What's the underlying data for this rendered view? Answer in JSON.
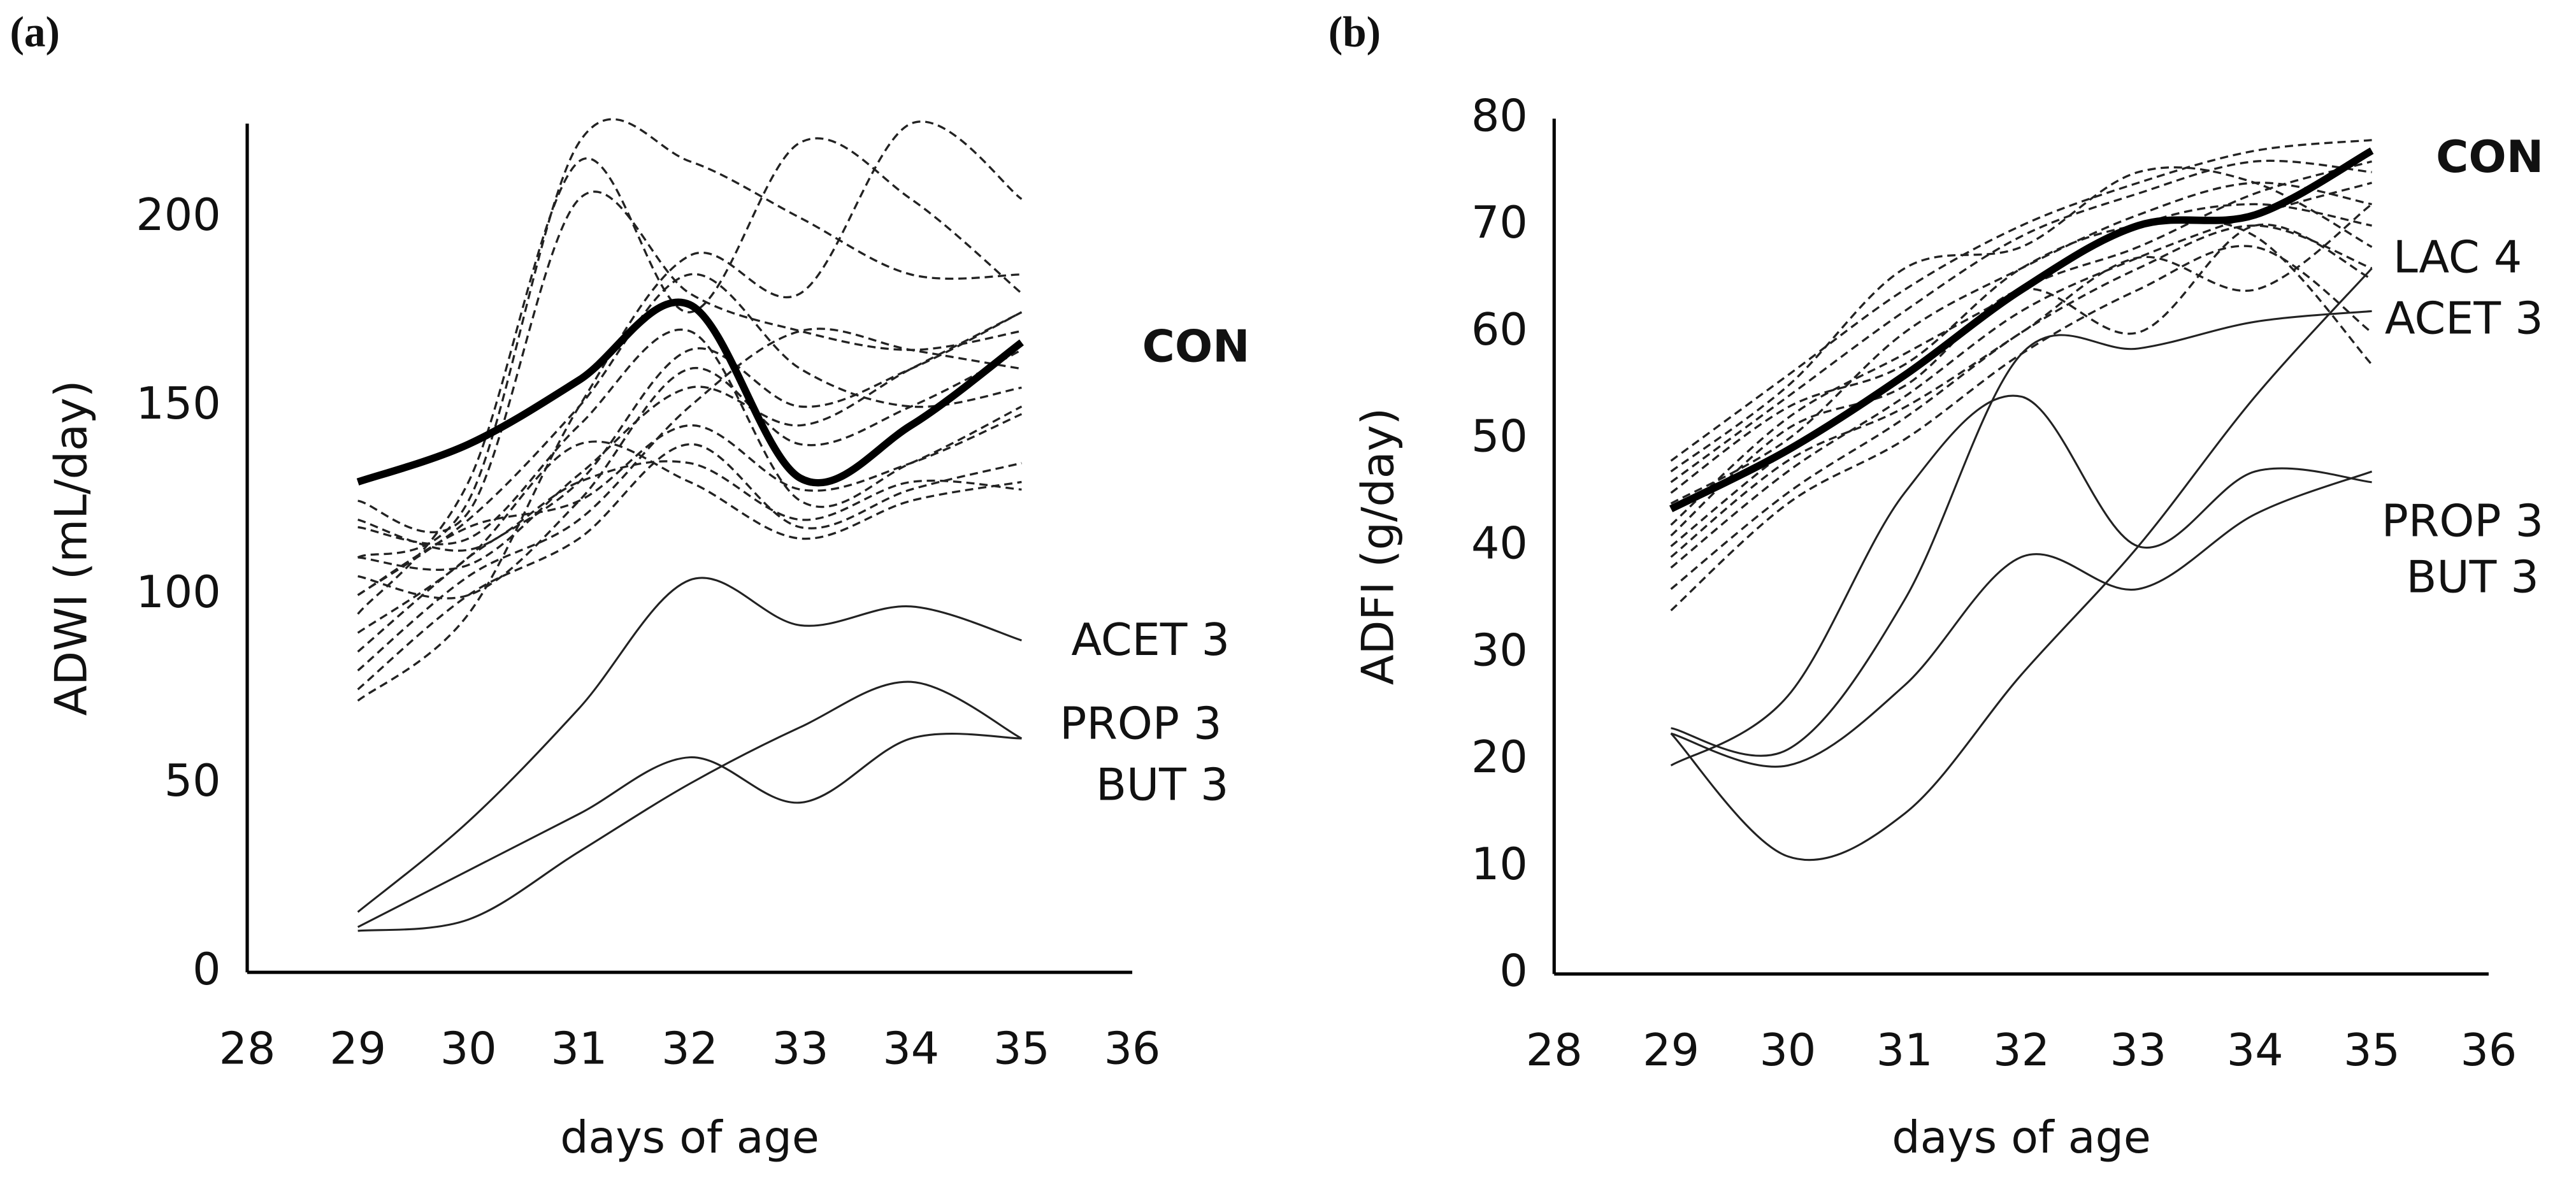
{
  "chart_data": [
    {
      "type": "line",
      "panel": "(a)",
      "ylabel": "ADWI (mL/day)",
      "xlabel": "days of age",
      "x": [
        29,
        30,
        31,
        32,
        33,
        34,
        35
      ],
      "xlim": [
        28,
        36
      ],
      "xticks": [
        28,
        29,
        30,
        31,
        32,
        33,
        34,
        35,
        36
      ],
      "ylim": [
        0,
        225
      ],
      "yticks": [
        0,
        50,
        100,
        150,
        200
      ],
      "series": [
        {
          "color": "#222",
          "style": "dashed",
          "values": [
            100,
            120,
            150,
            185,
            160,
            150,
            155
          ]
        },
        {
          "color": "#222",
          "style": "dashed",
          "values": [
            125,
            122,
            205,
            180,
            170,
            165,
            170
          ]
        },
        {
          "color": "#222",
          "style": "dashed",
          "values": [
            110,
            125,
            220,
            215,
            200,
            185,
            185
          ]
        },
        {
          "color": "#222",
          "style": "dashed",
          "values": [
            95,
            130,
            215,
            175,
            220,
            205,
            180
          ]
        },
        {
          "color": "#222",
          "style": "dashed",
          "values": [
            72,
            95,
            150,
            190,
            180,
            225,
            205
          ]
        },
        {
          "color": "#222",
          "style": "dashed",
          "values": [
            85,
            110,
            130,
            165,
            150,
            160,
            175
          ]
        },
        {
          "color": "#222",
          "style": "dashed",
          "values": [
            118,
            115,
            145,
            170,
            125,
            135,
            150
          ]
        },
        {
          "color": "#222",
          "style": "dashed",
          "values": [
            105,
            100,
            125,
            160,
            140,
            150,
            165
          ]
        },
        {
          "color": "#222",
          "style": "dashed",
          "values": [
            80,
            105,
            120,
            150,
            170,
            165,
            160
          ]
        },
        {
          "color": "#222",
          "style": "dashed",
          "values": [
            90,
            110,
            140,
            130,
            115,
            125,
            130
          ]
        },
        {
          "color": "#222",
          "style": "dashed",
          "values": [
            120,
            112,
            130,
            135,
            120,
            130,
            128
          ]
        },
        {
          "color": "#222",
          "style": "dashed",
          "values": [
            100,
            118,
            125,
            145,
            128,
            135,
            148
          ]
        },
        {
          "color": "#222",
          "style": "dashed",
          "values": [
            75,
            100,
            115,
            140,
            118,
            128,
            135
          ]
        },
        {
          "color": "#222",
          "style": "dashed",
          "values": [
            110,
            108,
            132,
            155,
            145,
            160,
            175
          ]
        },
        {
          "name": "CON",
          "color": "#000",
          "style": "bold",
          "values": [
            130,
            140,
            157,
            177,
            131,
            145,
            167
          ]
        },
        {
          "name": "ACET 3",
          "color": "#222",
          "style": "thin",
          "values": [
            16,
            40,
            70,
            104,
            92,
            97,
            88
          ]
        },
        {
          "name": "PROP 3",
          "color": "#222",
          "style": "thin",
          "values": [
            11,
            14,
            32,
            50,
            65,
            77,
            62
          ]
        },
        {
          "name": "BUT 3",
          "color": "#222",
          "style": "thin",
          "values": [
            12,
            27,
            42,
            57,
            45,
            62,
            62
          ]
        }
      ]
    },
    {
      "type": "line",
      "panel": "(b)",
      "ylabel": "ADFI (g/day)",
      "xlabel": "days of age",
      "x": [
        29,
        30,
        31,
        32,
        33,
        34,
        35
      ],
      "xlim": [
        28,
        36
      ],
      "xticks": [
        28,
        29,
        30,
        31,
        32,
        33,
        34,
        35,
        36
      ],
      "ylim": [
        0,
        80
      ],
      "yticks": [
        0,
        10,
        20,
        30,
        40,
        50,
        60,
        70,
        80
      ],
      "series": [
        {
          "color": "#222",
          "style": "dashed",
          "values": [
            48,
            56,
            64,
            70,
            74,
            77,
            78
          ]
        },
        {
          "color": "#222",
          "style": "dashed",
          "values": [
            46,
            54,
            62,
            69,
            73,
            76,
            75
          ]
        },
        {
          "color": "#222",
          "style": "dashed",
          "values": [
            44,
            50,
            60,
            66,
            71,
            74,
            72
          ]
        },
        {
          "color": "#222",
          "style": "dashed",
          "values": [
            42,
            52,
            58,
            64,
            70,
            72,
            70
          ]
        },
        {
          "color": "#222",
          "style": "dashed",
          "values": [
            40,
            49,
            56,
            64,
            68,
            73,
            76
          ]
        },
        {
          "color": "#222",
          "style": "dashed",
          "values": [
            38,
            47,
            54,
            62,
            67,
            71,
            74
          ]
        },
        {
          "color": "#222",
          "style": "dashed",
          "values": [
            36,
            45,
            52,
            60,
            66,
            70,
            66
          ]
        },
        {
          "color": "#222",
          "style": "dashed",
          "values": [
            34,
            44,
            50,
            58,
            64,
            68,
            60
          ]
        },
        {
          "color": "#222",
          "style": "dashed",
          "values": [
            47,
            55,
            66,
            68,
            75,
            74,
            68
          ]
        },
        {
          "color": "#222",
          "style": "dashed",
          "values": [
            41,
            51,
            55,
            64,
            60,
            70,
            65
          ]
        },
        {
          "color": "#222",
          "style": "dashed",
          "values": [
            39,
            48,
            53,
            60,
            67,
            64,
            72
          ]
        },
        {
          "color": "#222",
          "style": "dashed",
          "values": [
            45,
            53,
            57,
            66,
            70,
            69,
            57
          ]
        },
        {
          "name": "CON",
          "color": "#000",
          "style": "bold",
          "values": [
            43.5,
            49,
            56,
            64,
            70,
            71,
            77
          ]
        },
        {
          "name": "LAC 4",
          "color": "#222",
          "style": "thin",
          "values": [
            22.5,
            11,
            15,
            28,
            40,
            54,
            66
          ]
        },
        {
          "name": "ACET 3",
          "color": "#222",
          "style": "thin",
          "values": [
            23,
            21,
            35,
            58,
            58.5,
            61,
            62
          ]
        },
        {
          "name": "PROP 3",
          "color": "#222",
          "style": "thin",
          "values": [
            19.5,
            26,
            45,
            54,
            40,
            47,
            46
          ]
        },
        {
          "name": "BUT 3",
          "color": "#222",
          "style": "thin",
          "values": [
            22.5,
            19.5,
            27,
            39,
            36,
            43,
            47
          ]
        }
      ]
    }
  ]
}
